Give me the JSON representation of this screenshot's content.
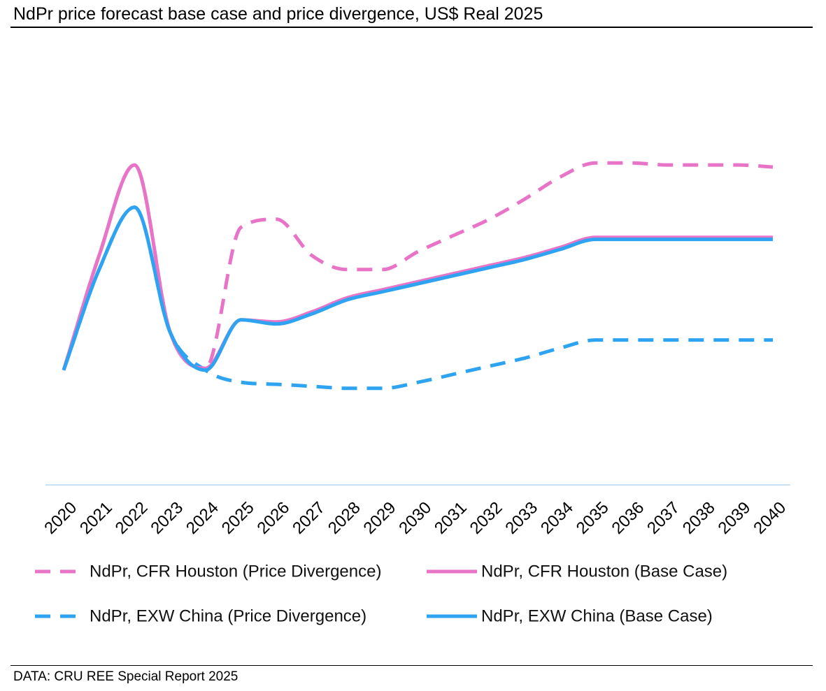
{
  "title": "NdPr price forecast base case and price divergence, US$ Real 2025",
  "source": "DATA: CRU REE Special Report 2025",
  "chart_data": {
    "type": "line",
    "title": "NdPr price forecast base case and price divergence, US$ Real 2025",
    "xlabel": "",
    "ylabel": "",
    "ylim": [
      0,
      100
    ],
    "y_axis_visible": false,
    "grid": false,
    "legend_position": "bottom",
    "categories": [
      "2020",
      "2021",
      "2022",
      "2023",
      "2024",
      "2025",
      "2026",
      "2027",
      "2028",
      "2029",
      "2030",
      "2031",
      "2032",
      "2033",
      "2034",
      "2035",
      "2036",
      "2037",
      "2038",
      "2039",
      "2040"
    ],
    "series": [
      {
        "name": "NdPr, CFR Houston (Price Divergence)",
        "style": "dashed",
        "color": "#e874c7",
        "values": [
          28.5,
          57,
          79.5,
          38,
          29,
          64,
          66,
          57,
          53.5,
          53.5,
          58,
          62,
          66,
          71,
          76.5,
          80,
          80,
          79.5,
          79.5,
          79.5,
          79
        ]
      },
      {
        "name": "NdPr, CFR Houston (Base Case)",
        "style": "solid",
        "color": "#e874c7",
        "values": [
          28.5,
          57,
          79.5,
          38,
          29,
          41,
          40.5,
          43,
          46.5,
          48.5,
          50.5,
          52.5,
          54.5,
          56.5,
          59,
          61.5,
          61.5,
          61.5,
          61.5,
          61.5,
          61.5
        ]
      },
      {
        "name": "NdPr, EXW China (Price Divergence)",
        "style": "dashed",
        "color": "#2ea3f2",
        "values": [
          28.5,
          53.5,
          69,
          38,
          28.5,
          25.5,
          25,
          24.5,
          24,
          24,
          25.5,
          27.5,
          29.5,
          31.5,
          34,
          36,
          36,
          36,
          36,
          36,
          36
        ]
      },
      {
        "name": "NdPr, EXW China (Base Case)",
        "style": "solid",
        "color": "#2ea3f2",
        "values": [
          28.5,
          53.5,
          69,
          38,
          28.5,
          41,
          40,
          42.5,
          46,
          48,
          50,
          52,
          54,
          56,
          58.5,
          61,
          61,
          61,
          61,
          61,
          61
        ]
      }
    ]
  }
}
